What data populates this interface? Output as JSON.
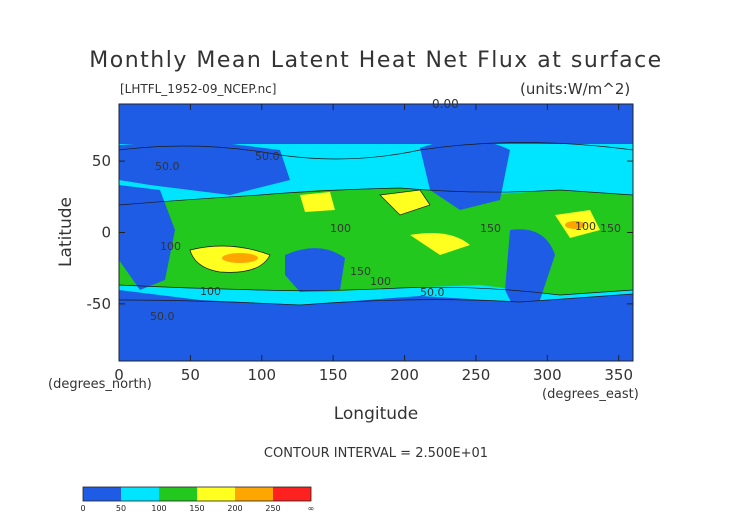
{
  "chart_data": {
    "type": "heatmap",
    "title": "Monthly Mean Latent Heat Net Flux at surface",
    "subtitle": "[LHTFL_1952-09_NCEP.nc]",
    "units": "(units:W/m^2)",
    "xlabel": "Longitude",
    "ylabel": "Latitude",
    "x_unit": "(degrees_east)",
    "y_unit": "(degrees_north)",
    "xlim": [
      0,
      360
    ],
    "ylim": [
      -90,
      90
    ],
    "xticks": [
      0,
      50,
      100,
      150,
      200,
      250,
      300,
      350
    ],
    "yticks": [
      50,
      0,
      -50
    ],
    "contour_interval": "CONTOUR INTERVAL = 2.500E+01",
    "contour_labels": [
      "0.00",
      "50.0",
      "50.0",
      "100",
      "100",
      "150",
      "150",
      "100",
      "100",
      "150",
      "50.0",
      "100",
      "50.0"
    ],
    "colorbar": {
      "ticks": [
        "0",
        "50",
        "100",
        "150",
        "200",
        "250",
        "∞"
      ],
      "colors": [
        "#1e5ce6",
        "#00e5ff",
        "#22c81e",
        "#ffff20",
        "#ffa500",
        "#ff2020"
      ]
    },
    "bands": [
      {
        "range": "0-50",
        "color": "#1e5ce6"
      },
      {
        "range": "50-100",
        "color": "#00e5ff"
      },
      {
        "range": "100-150",
        "color": "#22c81e"
      },
      {
        "range": "150-200",
        "color": "#ffff20"
      },
      {
        "range": "200-250",
        "color": "#ffa500"
      },
      {
        "range": ">250",
        "color": "#ff2020"
      }
    ]
  }
}
